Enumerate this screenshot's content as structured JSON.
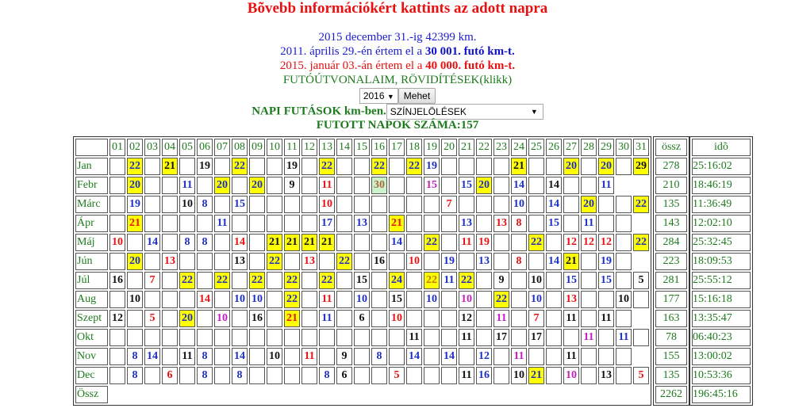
{
  "header": {
    "title": "Bõvebb információkért kattints az adott napra",
    "line1": "2015 december 31.-ig 42399 km.",
    "line2_pre": "2011. április 29.-én értem el a ",
    "line2_bold": "30 001. futó km-t.",
    "line3_pre": "2015. január 03.-án értem el a ",
    "line3_bold": "40 000. futó km-t.",
    "routes_link": "FUTÓÚTVONALAIM, RÖVIDÍTÉSEK(klikk)",
    "year_select": "2016",
    "go_button": "Mehet",
    "daily_label": "NAPI FUTÁSOK km-ben.",
    "color_select": "SZÍNJELÖLÉSEK",
    "days_run": "FUTOTT NAPOK SZÁMA:157"
  },
  "colors": {
    "blue": "#1c2fc4",
    "black": "#111111",
    "red": "#e81010",
    "magenta": "#c020c0",
    "brown": "#b0683a",
    "amber": "#c07a10",
    "yellow": "#ffff00",
    "green": "#ccf2cc",
    "label": "#1d7a1d"
  },
  "table": {
    "day_headers": [
      "01",
      "02",
      "03",
      "04",
      "05",
      "06",
      "07",
      "08",
      "09",
      "10",
      "11",
      "12",
      "13",
      "14",
      "15",
      "16",
      "17",
      "18",
      "19",
      "20",
      "21",
      "22",
      "23",
      "24",
      "25",
      "26",
      "27",
      "28",
      "29",
      "30",
      "31"
    ],
    "sum_header": "össz",
    "time_header": "idõ",
    "total_label": "Össz",
    "total_km": "2262",
    "total_time": "196:45:16",
    "months": [
      {
        "name": "Jan",
        "ndays": 31,
        "km": "278",
        "time": "25:16:02",
        "days": {
          "2": [
            "22",
            "blue",
            "yellow"
          ],
          "4": [
            "21",
            "black",
            "yellow"
          ],
          "6": [
            "19",
            "black"
          ],
          "8": [
            "22",
            "blue",
            "yellow"
          ],
          "11": [
            "19",
            "black"
          ],
          "13": [
            "22",
            "blue",
            "yellow"
          ],
          "16": [
            "22",
            "blue",
            "yellow"
          ],
          "18": [
            "22",
            "blue",
            "yellow"
          ],
          "19": [
            "19",
            "blue"
          ],
          "24": [
            "21",
            "black",
            "yellow"
          ],
          "27": [
            "20",
            "blue",
            "yellow"
          ],
          "29": [
            "20",
            "blue",
            "yellow"
          ],
          "31": [
            "29",
            "black",
            "yellow"
          ]
        }
      },
      {
        "name": "Febr",
        "ndays": 29,
        "km": "210",
        "time": "18:46:19",
        "days": {
          "2": [
            "20",
            "blue",
            "yellow"
          ],
          "5": [
            "11",
            "blue"
          ],
          "7": [
            "20",
            "blue",
            "yellow"
          ],
          "9": [
            "20",
            "blue",
            "yellow"
          ],
          "11": [
            "9",
            "black"
          ],
          "13": [
            "11",
            "red"
          ],
          "16": [
            "30",
            "brown",
            "green"
          ],
          "19": [
            "15",
            "magenta"
          ],
          "21": [
            "15",
            "blue"
          ],
          "22": [
            "20",
            "blue",
            "yellow"
          ],
          "24": [
            "14",
            "blue"
          ],
          "26": [
            "14",
            "black"
          ],
          "29": [
            "11",
            "blue"
          ]
        }
      },
      {
        "name": "Márc",
        "ndays": 31,
        "km": "135",
        "time": "11:36:49",
        "days": {
          "2": [
            "19",
            "blue"
          ],
          "5": [
            "10",
            "black"
          ],
          "6": [
            "8",
            "blue"
          ],
          "8": [
            "15",
            "blue"
          ],
          "13": [
            "10",
            "red"
          ],
          "20": [
            "7",
            "red"
          ],
          "24": [
            "10",
            "blue"
          ],
          "26": [
            "14",
            "blue"
          ],
          "28": [
            "20",
            "blue",
            "yellow"
          ],
          "31": [
            "22",
            "blue",
            "yellow"
          ]
        }
      },
      {
        "name": "Ápr",
        "ndays": 30,
        "km": "143",
        "time": "12:02:10",
        "days": {
          "2": [
            "21",
            "red",
            "yellow"
          ],
          "7": [
            "11",
            "blue"
          ],
          "13": [
            "17",
            "blue"
          ],
          "15": [
            "13",
            "blue"
          ],
          "17": [
            "21",
            "red",
            "yellow"
          ],
          "21": [
            "13",
            "blue"
          ],
          "23": [
            "13",
            "red"
          ],
          "24": [
            "8",
            "red"
          ],
          "26": [
            "15",
            "blue"
          ],
          "28": [
            "11",
            "blue"
          ]
        }
      },
      {
        "name": "Máj",
        "ndays": 31,
        "km": "284",
        "time": "25:32:45",
        "days": {
          "1": [
            "10",
            "red"
          ],
          "3": [
            "14",
            "blue"
          ],
          "5": [
            "8",
            "blue"
          ],
          "6": [
            "8",
            "blue"
          ],
          "8": [
            "14",
            "red"
          ],
          "10": [
            "21",
            "black",
            "yellow"
          ],
          "11": [
            "21",
            "black",
            "yellow"
          ],
          "12": [
            "21",
            "black",
            "yellow"
          ],
          "13": [
            "21",
            "black",
            "yellow"
          ],
          "17": [
            "14",
            "blue"
          ],
          "19": [
            "22",
            "blue",
            "yellow"
          ],
          "21": [
            "11",
            "red"
          ],
          "22": [
            "19",
            "red"
          ],
          "25": [
            "22",
            "blue",
            "yellow"
          ],
          "27": [
            "12",
            "red"
          ],
          "28": [
            "12",
            "red"
          ],
          "29": [
            "12",
            "red"
          ],
          "31": [
            "22",
            "blue",
            "yellow"
          ]
        }
      },
      {
        "name": "Jún",
        "ndays": 30,
        "km": "223",
        "time": "18:09:53",
        "days": {
          "2": [
            "20",
            "blue",
            "yellow"
          ],
          "4": [
            "13",
            "red"
          ],
          "8": [
            "13",
            "black"
          ],
          "10": [
            "22",
            "blue",
            "yellow"
          ],
          "12": [
            "13",
            "red"
          ],
          "14": [
            "22",
            "blue",
            "yellow"
          ],
          "16": [
            "16",
            "black"
          ],
          "18": [
            "10",
            "red"
          ],
          "20": [
            "19",
            "blue"
          ],
          "22": [
            "13",
            "blue"
          ],
          "24": [
            "8",
            "red"
          ],
          "26": [
            "14",
            "blue"
          ],
          "27": [
            "21",
            "black",
            "yellow"
          ],
          "29": [
            "19",
            "blue"
          ]
        }
      },
      {
        "name": "Júl",
        "ndays": 31,
        "km": "281",
        "time": "25:55:12",
        "days": {
          "1": [
            "16",
            "black"
          ],
          "3": [
            "7",
            "red"
          ],
          "5": [
            "22",
            "blue",
            "yellow"
          ],
          "7": [
            "22",
            "blue",
            "yellow"
          ],
          "9": [
            "22",
            "blue",
            "yellow"
          ],
          "11": [
            "22",
            "blue",
            "yellow"
          ],
          "13": [
            "22",
            "blue",
            "yellow"
          ],
          "15": [
            "15",
            "black"
          ],
          "17": [
            "24",
            "blue",
            "yellow"
          ],
          "19": [
            "22",
            "amber",
            "yellow"
          ],
          "20": [
            "11",
            "blue"
          ],
          "21": [
            "22",
            "blue",
            "yellow"
          ],
          "23": [
            "9",
            "black"
          ],
          "25": [
            "10",
            "black"
          ],
          "27": [
            "15",
            "blue"
          ],
          "29": [
            "15",
            "blue"
          ],
          "31": [
            "5",
            "black"
          ]
        }
      },
      {
        "name": "Aug",
        "ndays": 31,
        "km": "177",
        "time": "15:16:18",
        "days": {
          "2": [
            "10",
            "black"
          ],
          "6": [
            "14",
            "red"
          ],
          "8": [
            "10",
            "blue"
          ],
          "9": [
            "10",
            "blue"
          ],
          "11": [
            "22",
            "blue",
            "yellow"
          ],
          "13": [
            "11",
            "red"
          ],
          "15": [
            "10",
            "blue"
          ],
          "17": [
            "15",
            "black"
          ],
          "19": [
            "10",
            "blue"
          ],
          "21": [
            "10",
            "magenta"
          ],
          "23": [
            "22",
            "blue",
            "yellow"
          ],
          "25": [
            "10",
            "blue"
          ],
          "27": [
            "13",
            "red"
          ],
          "30": [
            "10",
            "black"
          ]
        }
      },
      {
        "name": "Szept",
        "ndays": 30,
        "km": "163",
        "time": "13:35:47",
        "days": {
          "1": [
            "12",
            "black"
          ],
          "3": [
            "5",
            "red"
          ],
          "5": [
            "20",
            "blue",
            "yellow"
          ],
          "7": [
            "10",
            "magenta"
          ],
          "9": [
            "16",
            "black"
          ],
          "11": [
            "21",
            "red",
            "yellow"
          ],
          "13": [
            "11",
            "blue"
          ],
          "15": [
            "6",
            "black"
          ],
          "17": [
            "10",
            "red"
          ],
          "21": [
            "12",
            "black"
          ],
          "23": [
            "11",
            "magenta"
          ],
          "25": [
            "7",
            "red"
          ],
          "27": [
            "11",
            "black"
          ],
          "29": [
            "11",
            "black"
          ]
        }
      },
      {
        "name": "Okt",
        "ndays": 31,
        "km": "78",
        "time": "06:40:23",
        "days": {
          "18": [
            "11",
            "black"
          ],
          "21": [
            "11",
            "black"
          ],
          "23": [
            "17",
            "black"
          ],
          "25": [
            "17",
            "black"
          ],
          "28": [
            "11",
            "magenta"
          ],
          "30": [
            "11",
            "blue"
          ]
        }
      },
      {
        "name": "Nov",
        "ndays": 30,
        "km": "155",
        "time": "13:00:02",
        "days": {
          "2": [
            "8",
            "blue"
          ],
          "3": [
            "14",
            "blue"
          ],
          "5": [
            "11",
            "black"
          ],
          "6": [
            "8",
            "blue"
          ],
          "8": [
            "14",
            "blue"
          ],
          "10": [
            "10",
            "black"
          ],
          "12": [
            "11",
            "red"
          ],
          "14": [
            "9",
            "black"
          ],
          "16": [
            "8",
            "blue"
          ],
          "18": [
            "14",
            "blue"
          ],
          "20": [
            "14",
            "blue"
          ],
          "22": [
            "12",
            "blue"
          ],
          "24": [
            "11",
            "magenta"
          ],
          "27": [
            "11",
            "black"
          ]
        }
      },
      {
        "name": "Dec",
        "ndays": 31,
        "km": "135",
        "time": "10:53:36",
        "days": {
          "2": [
            "8",
            "blue"
          ],
          "4": [
            "6",
            "red"
          ],
          "6": [
            "8",
            "blue"
          ],
          "8": [
            "8",
            "blue"
          ],
          "13": [
            "8",
            "blue"
          ],
          "14": [
            "6",
            "black"
          ],
          "17": [
            "5",
            "red"
          ],
          "21": [
            "11",
            "black"
          ],
          "22": [
            "16",
            "blue"
          ],
          "24": [
            "10",
            "black"
          ],
          "25": [
            "21",
            "blue",
            "yellow"
          ],
          "27": [
            "10",
            "magenta"
          ],
          "29": [
            "13",
            "black"
          ],
          "31": [
            "5",
            "red"
          ]
        }
      }
    ]
  }
}
